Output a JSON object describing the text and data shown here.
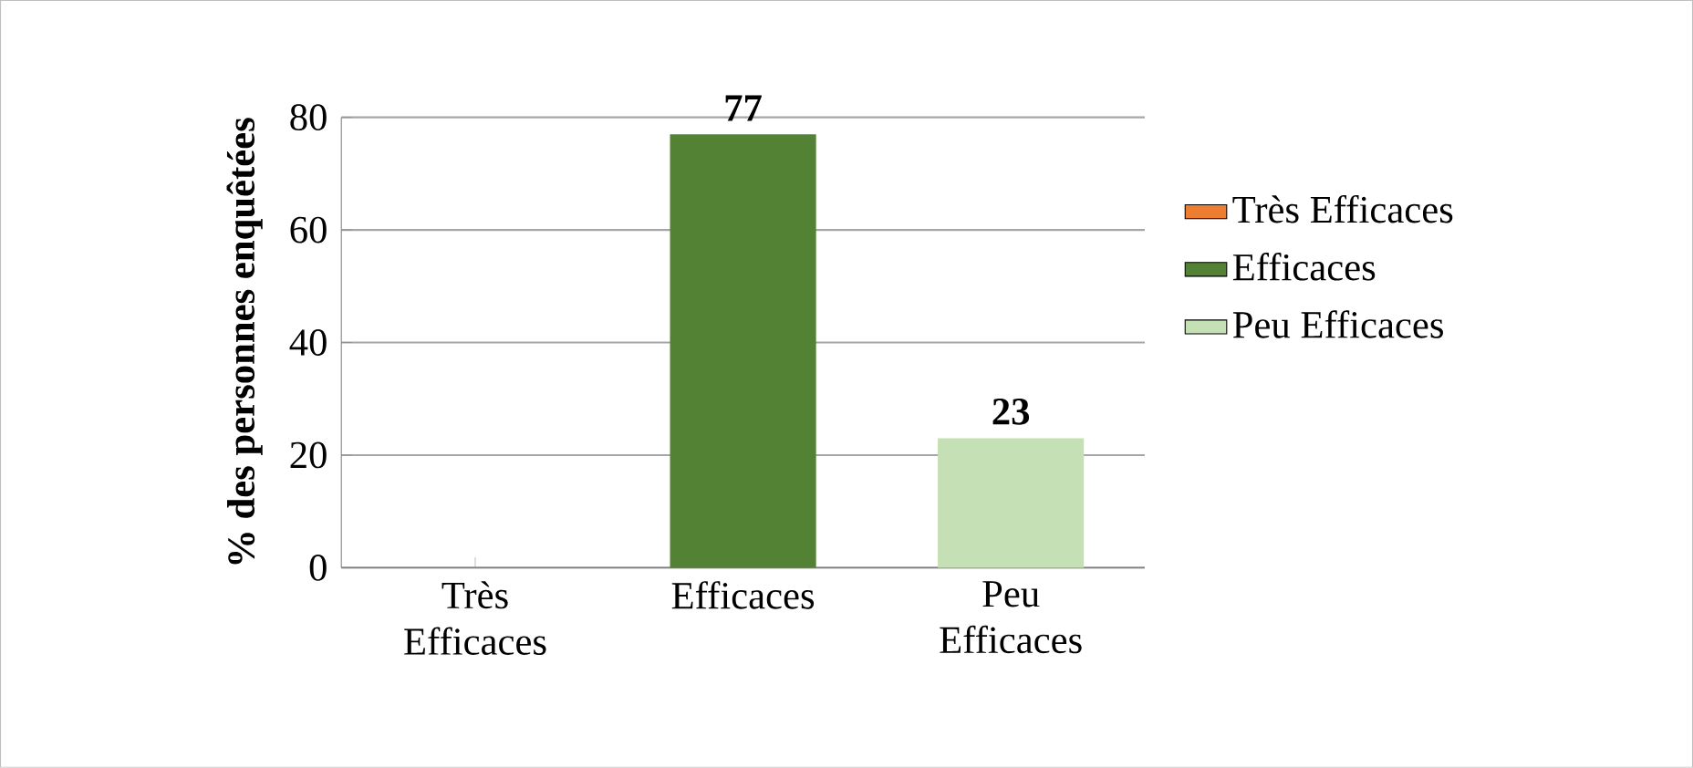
{
  "chart_data": {
    "type": "bar",
    "ylabel": "% des personnes enquêtées",
    "categories": [
      "Très Efficaces",
      "Efficaces",
      "Peu Efficaces"
    ],
    "series": [
      {
        "name": "Très Efficaces",
        "color": "#ed7d31",
        "values": [
          0,
          null,
          null
        ],
        "value_labels": [
          null,
          null,
          null
        ]
      },
      {
        "name": "Efficaces",
        "color": "#548235",
        "values": [
          null,
          77,
          null
        ],
        "value_labels": [
          null,
          "77",
          null
        ]
      },
      {
        "name": "Peu Efficaces",
        "color": "#c5e0b4",
        "values": [
          null,
          null,
          23
        ],
        "value_labels": [
          null,
          null,
          "23"
        ]
      }
    ],
    "ylim": [
      0,
      80
    ],
    "yticks": [
      0,
      20,
      40,
      60,
      80
    ],
    "grid": "y",
    "legend": "right"
  }
}
